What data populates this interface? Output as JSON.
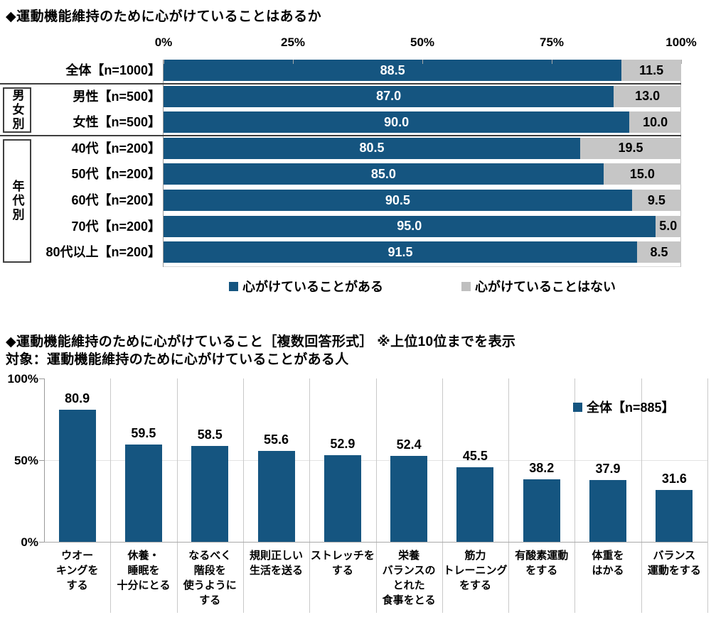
{
  "colors": {
    "bar_blue": "#155580",
    "bar_gray": "#c6c6c6",
    "separator_dark": "#3f3f3f",
    "grid_light": "#d9d9d9"
  },
  "chart_data": [
    {
      "type": "bar",
      "orientation": "horizontal-stacked",
      "title": "◆運動機能維持のために心がけていることはあるか",
      "x_ticks": [
        "0%",
        "25%",
        "50%",
        "75%",
        "100%"
      ],
      "xlim": [
        0,
        100
      ],
      "grid": false,
      "legend_position": "bottom-center",
      "categories": [
        "全体【n=1000】",
        "男性【n=500】",
        "女性【n=500】",
        "40代【n=200】",
        "50代【n=200】",
        "60代【n=200】",
        "70代【n=200】",
        "80代以上【n=200】"
      ],
      "series": [
        {
          "name": "心がけていることがある",
          "color": "#155580",
          "values": [
            88.5,
            87.0,
            90.0,
            80.5,
            85.0,
            90.5,
            95.0,
            91.5
          ]
        },
        {
          "name": "心がけていることはない",
          "color": "#c6c6c6",
          "values": [
            11.5,
            13.0,
            10.0,
            19.5,
            15.0,
            9.5,
            5.0,
            8.5
          ]
        }
      ],
      "group_brackets": [
        {
          "label": "男女別",
          "rows": [
            1,
            2
          ]
        },
        {
          "label": "年代別",
          "rows": [
            3,
            7
          ]
        }
      ]
    },
    {
      "type": "bar",
      "orientation": "vertical",
      "title": "◆運動機能維持のために心がけていること［複数回答形式］ ※上位10位までを表示",
      "subtitle": "対象：運動機能維持のために心がけていることがある人",
      "legend_label": "全体【n=885】",
      "legend_position": "inside-top-right",
      "y_ticks": [
        "100%",
        "50%",
        "0%"
      ],
      "ylim": [
        0,
        100
      ],
      "grid": "50%-line-only",
      "bar_color": "#155580",
      "categories": [
        "ウオー\nキングを\nする",
        "休養・\n睡眠を\n十分にとる",
        "なるべく\n階段を\n使うように\nする",
        "規則正しい\n生活を送る",
        "ストレッチを\nする",
        "栄養\nバランスの\nとれた\n食事をとる",
        "筋力\nトレーニング\nをする",
        "有酸素運動\nをする",
        "体重を\nはかる",
        "バランス\n運動をする"
      ],
      "values": [
        80.9,
        59.5,
        58.5,
        55.6,
        52.9,
        52.4,
        45.5,
        38.2,
        37.9,
        31.6
      ]
    }
  ]
}
